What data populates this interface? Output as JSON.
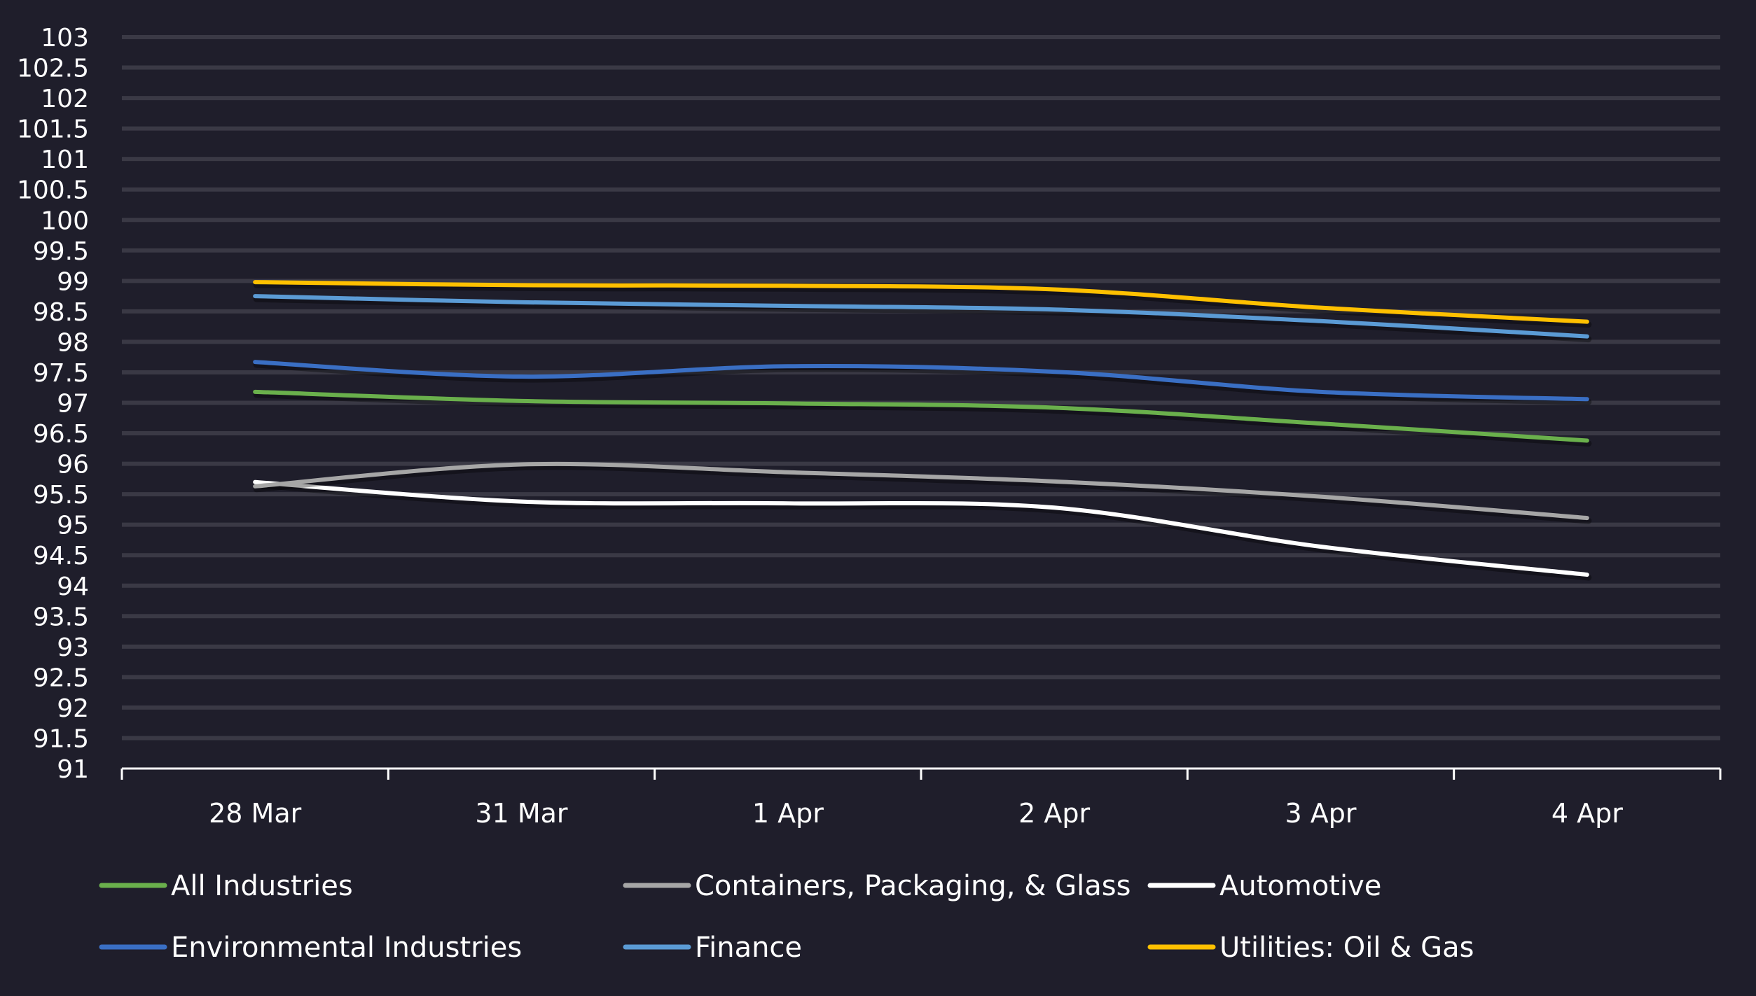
{
  "chart_data": {
    "type": "line",
    "title": "",
    "xlabel": "",
    "ylabel": "",
    "categories": [
      "28 Mar",
      "31 Mar",
      "1 Apr",
      "2 Apr",
      "3 Apr",
      "4 Apr"
    ],
    "ylim": [
      91,
      103
    ],
    "y_ticks": [
      "103",
      "102.5",
      "102",
      "101.5",
      "101",
      "100.5",
      "100",
      "99.5",
      "99",
      "98.5",
      "98",
      "97.5",
      "97",
      "96.5",
      "96",
      "95.5",
      "95",
      "94.5",
      "94",
      "93.5",
      "93",
      "92.5",
      "92",
      "91.5",
      "91"
    ],
    "grid": true,
    "legend_position": "bottom",
    "series": [
      {
        "name": "All Industries",
        "color": "#6ab04c",
        "values": [
          97.18,
          97.03,
          96.99,
          96.92,
          96.66,
          96.38
        ]
      },
      {
        "name": "Containers, Packaging, & Glass",
        "color": "#a6a6a6",
        "values": [
          95.63,
          95.99,
          95.86,
          95.71,
          95.46,
          95.11
        ]
      },
      {
        "name": "Automotive",
        "color": "#ffffff",
        "values": [
          95.7,
          95.38,
          95.35,
          95.28,
          94.64,
          94.18
        ]
      },
      {
        "name": "Environmental Industries",
        "color": "#3a6fc4",
        "values": [
          97.67,
          97.43,
          97.6,
          97.51,
          97.18,
          97.06
        ]
      },
      {
        "name": "Finance",
        "color": "#5b9bd5",
        "values": [
          98.75,
          98.65,
          98.59,
          98.53,
          98.34,
          98.09
        ]
      },
      {
        "name": "Utilities: Oil & Gas",
        "color": "#ffc000",
        "values": [
          98.98,
          98.93,
          98.92,
          98.86,
          98.56,
          98.33
        ]
      }
    ]
  }
}
